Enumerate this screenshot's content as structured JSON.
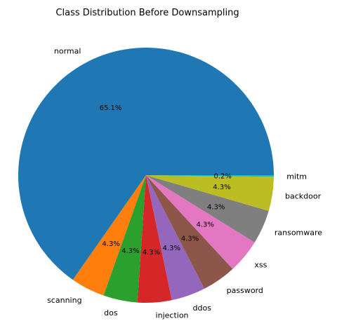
{
  "chart_data": {
    "type": "pie",
    "title": "Class Distribution Before Downsampling",
    "start_angle_deg": 0,
    "direction": "counterclockwise",
    "slices": [
      {
        "label": "normal",
        "value": 65.1,
        "pct": "65.1%",
        "color": "#1f77b4"
      },
      {
        "label": "scanning",
        "value": 4.3,
        "pct": "4.3%",
        "color": "#ff7f0e"
      },
      {
        "label": "dos",
        "value": 4.3,
        "pct": "4.3%",
        "color": "#2ca02c"
      },
      {
        "label": "injection",
        "value": 4.3,
        "pct": "4.3%",
        "color": "#d62728"
      },
      {
        "label": "ddos",
        "value": 4.3,
        "pct": "4.3%",
        "color": "#9467bd"
      },
      {
        "label": "password",
        "value": 4.3,
        "pct": "4.3%",
        "color": "#8c564b"
      },
      {
        "label": "xss",
        "value": 4.3,
        "pct": "4.3%",
        "color": "#e377c2"
      },
      {
        "label": "ransomware",
        "value": 4.3,
        "pct": "4.3%",
        "color": "#7f7f7f"
      },
      {
        "label": "backdoor",
        "value": 4.3,
        "pct": "4.3%",
        "color": "#bcbd22"
      },
      {
        "label": "mitm",
        "value": 0.2,
        "pct": "0.2%",
        "color": "#17becf"
      }
    ]
  }
}
